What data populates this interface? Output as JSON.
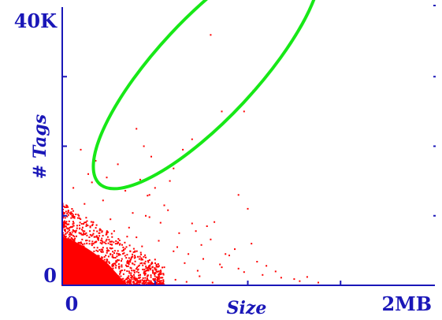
{
  "chart_data": {
    "type": "scatter",
    "title": "",
    "xlabel": "Size",
    "ylabel": "# Tags",
    "x_unit": "MB",
    "y_unit": "K tags",
    "xlim": [
      0,
      2
    ],
    "ylim": [
      0,
      40
    ],
    "x_tick_labels": [
      {
        "value": 0,
        "label": "0"
      },
      {
        "value": 2,
        "label": "2MB"
      }
    ],
    "y_tick_labels": [
      {
        "value": 0,
        "label": "0"
      },
      {
        "value": 40,
        "label": "40K"
      }
    ],
    "x_minor_ticks": [
      0.5,
      1.0,
      1.5
    ],
    "y_minor_ticks": [
      10,
      20,
      30
    ],
    "grid": false,
    "legend": "none",
    "series": [
      {
        "color": "#ff0000",
        "points": [
          [
            0.01,
            0.3
          ],
          [
            0.02,
            0.5
          ],
          [
            0.03,
            1.2
          ],
          [
            0.04,
            0.8
          ],
          [
            0.05,
            2.1
          ],
          [
            0.06,
            1.5
          ],
          [
            0.07,
            3.0
          ],
          [
            0.08,
            2.4
          ],
          [
            0.09,
            1.0
          ],
          [
            0.1,
            4.2
          ],
          [
            0.11,
            2.9
          ],
          [
            0.12,
            3.6
          ],
          [
            0.13,
            5.1
          ],
          [
            0.14,
            1.8
          ],
          [
            0.15,
            4.5
          ],
          [
            0.16,
            6.0
          ],
          [
            0.17,
            2.2
          ],
          [
            0.18,
            3.9
          ],
          [
            0.19,
            5.4
          ],
          [
            0.2,
            7.1
          ],
          [
            0.21,
            1.4
          ],
          [
            0.22,
            4.8
          ],
          [
            0.23,
            3.3
          ],
          [
            0.24,
            6.6
          ],
          [
            0.25,
            2.7
          ],
          [
            0.26,
            5.9
          ],
          [
            0.27,
            4.1
          ],
          [
            0.28,
            7.8
          ],
          [
            0.29,
            3.5
          ],
          [
            0.3,
            6.2
          ],
          [
            0.32,
            2.9
          ],
          [
            0.33,
            5.0
          ],
          [
            0.35,
            4.4
          ],
          [
            0.36,
            8.3
          ],
          [
            0.38,
            3.1
          ],
          [
            0.4,
            6.9
          ],
          [
            0.41,
            2.3
          ],
          [
            0.43,
            5.6
          ],
          [
            0.45,
            4.0
          ],
          [
            0.47,
            9.8
          ],
          [
            0.5,
            3.7
          ],
          [
            0.52,
            6.4
          ],
          [
            0.55,
            2.6
          ],
          [
            0.57,
            10.8
          ],
          [
            0.6,
            4.9
          ],
          [
            0.63,
            7.5
          ],
          [
            0.66,
            3.2
          ],
          [
            0.7,
            8.9
          ],
          [
            0.73,
            2.1
          ],
          [
            0.75,
            5.8
          ],
          [
            0.8,
            6.6
          ],
          [
            0.85,
            3.0
          ],
          [
            0.9,
            4.3
          ],
          [
            0.95,
            2.4
          ],
          [
            1.0,
            11.0
          ],
          [
            1.08,
            1.5
          ],
          [
            1.15,
            2.0
          ],
          [
            1.25,
            0.9
          ],
          [
            1.32,
            1.2
          ],
          [
            0.04,
            5.5
          ],
          [
            0.08,
            8.2
          ],
          [
            0.12,
            11.7
          ],
          [
            0.16,
            14.8
          ],
          [
            0.22,
            12.2
          ],
          [
            0.26,
            9.5
          ],
          [
            0.3,
            17.4
          ],
          [
            0.34,
            13.6
          ],
          [
            0.38,
            10.4
          ],
          [
            0.42,
            15.2
          ],
          [
            0.46,
            12.9
          ],
          [
            0.5,
            14.0
          ],
          [
            0.55,
            11.5
          ],
          [
            0.6,
            16.8
          ],
          [
            0.65,
            19.5
          ],
          [
            0.72,
            7.8
          ],
          [
            0.78,
            8.5
          ],
          [
            0.82,
            9.1
          ],
          [
            0.88,
            4.5
          ],
          [
            0.93,
            5.2
          ],
          [
            1.02,
            6.0
          ],
          [
            0.1,
            19.5
          ],
          [
            0.14,
            16.0
          ],
          [
            0.18,
            17.9
          ],
          [
            0.24,
            15.5
          ],
          [
            0.4,
            22.5
          ],
          [
            0.44,
            20.0
          ],
          [
            0.48,
            18.5
          ],
          [
            0.06,
            14.0
          ],
          [
            0.09,
            10.0
          ],
          [
            0.35,
            7.0
          ],
          [
            0.45,
            10.0
          ],
          [
            0.53,
            9.0
          ],
          [
            0.62,
            5.5
          ],
          [
            0.68,
            4.5
          ],
          [
            0.76,
            3.8
          ],
          [
            0.86,
            2.6
          ],
          [
            0.98,
            1.9
          ],
          [
            1.05,
            3.4
          ],
          [
            1.1,
            2.8
          ],
          [
            1.18,
            1.1
          ],
          [
            1.28,
            0.6
          ],
          [
            0.47,
            13.0
          ],
          [
            0.58,
            15.0
          ],
          [
            0.7,
            21.0
          ],
          [
            0.8,
            36.0
          ],
          [
            1.03,
            28.0
          ],
          [
            0.86,
            25.0
          ],
          [
            0.98,
            25.0
          ],
          [
            0.95,
            13.0
          ],
          [
            1.38,
            0.4
          ],
          [
            0.2,
            1.3
          ],
          [
            0.31,
            0.7
          ],
          [
            0.36,
            2.0
          ],
          [
            0.42,
            1.5
          ],
          [
            0.49,
            0.9
          ],
          [
            0.54,
            1.1
          ],
          [
            0.61,
            0.8
          ],
          [
            0.67,
            0.5
          ],
          [
            0.74,
            1.3
          ],
          [
            0.81,
            0.4
          ]
        ]
      }
    ],
    "annotations": [
      {
        "shape": "ellipse",
        "color": "#17e817",
        "center": [
          0.78,
          31.2
        ],
        "semi_axes": [
          0.85,
          2.7
        ],
        "rotation_deg": -47
      }
    ]
  }
}
